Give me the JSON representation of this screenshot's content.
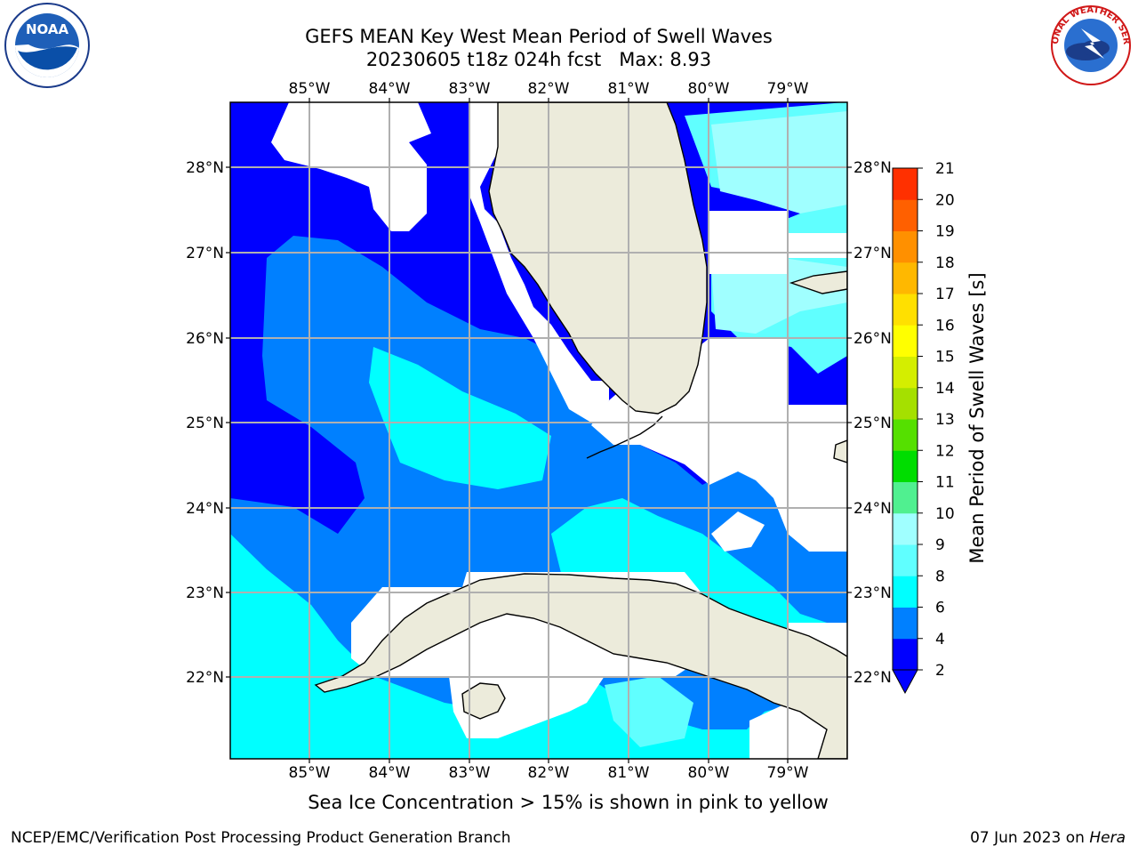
{
  "title": {
    "line1": "GEFS MEAN Key West Mean Period of Swell Waves",
    "line2": "20230605 t18z 024h fcst   Max: 8.93"
  },
  "map": {
    "lon_ticks": [
      "85°W",
      "84°W",
      "83°W",
      "82°W",
      "81°W",
      "80°W",
      "79°W"
    ],
    "lat_ticks": [
      "28°N",
      "27°N",
      "26°N",
      "25°N",
      "24°N",
      "23°N",
      "22°N"
    ],
    "land_color": "#ecebdb",
    "grid_color": "#b0b0b0"
  },
  "colorbar": {
    "label": "Mean Period of Swell Waves [s]",
    "ticks": [
      "2",
      "4",
      "6",
      "8",
      "9",
      "10",
      "11",
      "12",
      "13",
      "14",
      "15",
      "16",
      "17",
      "18",
      "19",
      "20",
      "21"
    ],
    "colors": [
      "#0000ff",
      "#0080ff",
      "#00ffff",
      "#60ffff",
      "#a0ffff",
      "#50f090",
      "#00dd00",
      "#55e000",
      "#a5e000",
      "#d4ee00",
      "#ffff00",
      "#ffe000",
      "#ffb800",
      "#ff9000",
      "#ff6000",
      "#ff3000",
      "#ff0000"
    ]
  },
  "subtitle": "Sea Ice Concentration > 15% is shown in pink to yellow",
  "footer": {
    "left": "NCEP/EMC/Verification Post Processing Product Generation Branch",
    "right_date": "07 Jun 2023 on",
    "right_host": "Hera"
  },
  "logos": {
    "noaa_text": "NOAA",
    "nws_text": "NATIONAL WEATHER SERVICE"
  }
}
